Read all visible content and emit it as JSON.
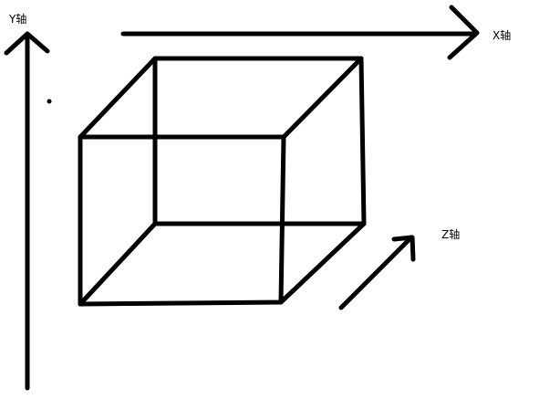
{
  "labels": {
    "y_axis": "Y轴",
    "x_axis": "X轴",
    "z_axis": "Z轴"
  },
  "colors": {
    "stroke": "#000000",
    "background": "#ffffff"
  }
}
